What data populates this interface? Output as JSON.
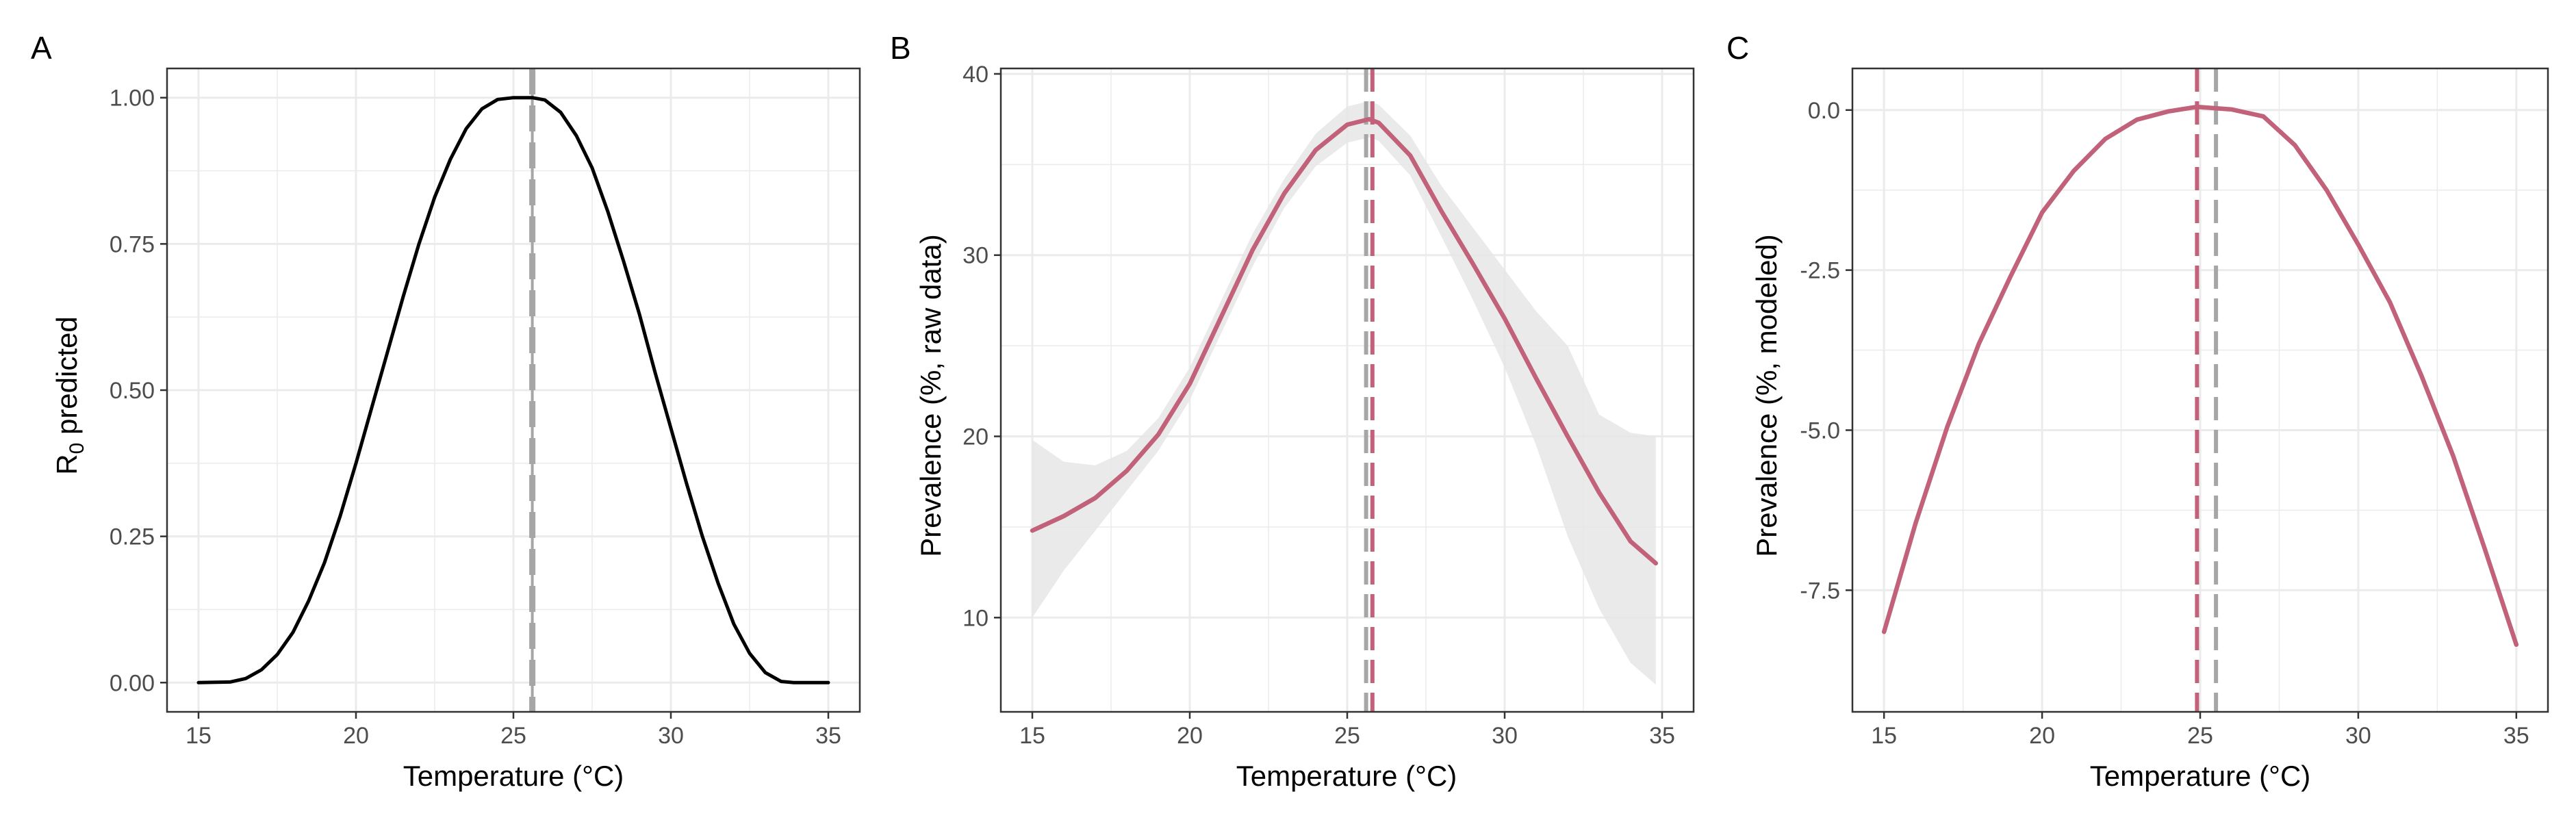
{
  "colors": {
    "model": "#c1627a",
    "black": "#000000",
    "ref_line": "#a6a6a6",
    "ci_band": "#e6e6e6",
    "grid": "#ebebeb",
    "border": "#333333"
  },
  "chart_data": [
    {
      "type": "line",
      "panel": "A",
      "xlabel": "Temperature (°C)",
      "ylabel_main": "R",
      "ylabel_sub": "0",
      "ylabel_rest": " predicted",
      "xlim": [
        14,
        36
      ],
      "ylim": [
        -0.05,
        1.05
      ],
      "x_ticks": [
        15,
        20,
        25,
        30,
        35
      ],
      "x_tick_labels": [
        "15",
        "20",
        "25",
        "30",
        "35"
      ],
      "y_ticks": [
        0,
        0.25,
        0.5,
        0.75,
        1.0
      ],
      "y_tick_labels": [
        "0.00",
        "0.25",
        "0.50",
        "0.75",
        "1.00"
      ],
      "grid": true,
      "series": [
        {
          "x": [
            15,
            16,
            16.5,
            17,
            17.5,
            18,
            18.5,
            19,
            19.5,
            20,
            20.5,
            21,
            21.5,
            22,
            22.5,
            23,
            23.5,
            24,
            24.5,
            25,
            25.3,
            25.6,
            26,
            26.5,
            27,
            27.5,
            28,
            28.5,
            29,
            29.5,
            30,
            30.5,
            31,
            31.5,
            32,
            32.5,
            33,
            33.5,
            33.9,
            35
          ],
          "y": [
            0,
            0.001,
            0.007,
            0.022,
            0.048,
            0.086,
            0.14,
            0.205,
            0.285,
            0.375,
            0.47,
            0.565,
            0.66,
            0.75,
            0.83,
            0.895,
            0.947,
            0.981,
            0.997,
            1.0,
            1.0,
            1.0,
            0.996,
            0.975,
            0.935,
            0.88,
            0.805,
            0.72,
            0.63,
            0.53,
            0.435,
            0.34,
            0.25,
            0.17,
            0.1,
            0.05,
            0.017,
            0.002,
            0,
            0
          ]
        }
      ],
      "vlines": [
        {
          "x": 25.6,
          "color": "#a6a6a6",
          "style": "solid-dashed"
        }
      ]
    },
    {
      "type": "line",
      "panel": "B",
      "xlabel": "Temperature (°C)",
      "ylabel": "Prevalence (%, raw data)",
      "xlim": [
        14,
        36
      ],
      "ylim": [
        4.8,
        40.3
      ],
      "x_ticks": [
        15,
        20,
        25,
        30,
        35
      ],
      "x_tick_labels": [
        "15",
        "20",
        "25",
        "30",
        "35"
      ],
      "y_ticks": [
        10,
        20,
        30,
        40
      ],
      "y_tick_labels": [
        "10",
        "20",
        "30",
        "40"
      ],
      "grid": true,
      "series": [
        {
          "x": [
            15,
            16,
            17,
            18,
            19,
            20,
            21,
            22,
            23,
            24,
            25,
            25.7,
            26,
            27,
            28,
            29,
            30,
            31,
            32,
            33,
            34,
            34.8
          ],
          "y": [
            14.8,
            15.6,
            16.6,
            18.1,
            20.1,
            22.9,
            26.6,
            30.3,
            33.4,
            35.8,
            37.2,
            37.5,
            37.3,
            35.5,
            32.4,
            29.5,
            26.5,
            23.2,
            20.0,
            16.9,
            14.2,
            13.0
          ],
          "ci_lower": [
            10.0,
            12.6,
            14.8,
            17.0,
            19.2,
            22.0,
            25.7,
            29.4,
            32.6,
            34.9,
            36.2,
            36.5,
            36.3,
            34.4,
            31.0,
            27.5,
            23.8,
            19.5,
            14.5,
            10.5,
            7.5,
            6.3
          ],
          "ci_upper": [
            19.8,
            18.6,
            18.4,
            19.2,
            21.0,
            23.8,
            27.5,
            31.2,
            34.2,
            36.7,
            38.2,
            38.5,
            38.3,
            36.6,
            33.8,
            31.5,
            29.2,
            26.9,
            25.0,
            21.2,
            20.2,
            20.0
          ]
        }
      ],
      "vlines": [
        {
          "x": 25.6,
          "color": "#a6a6a6"
        },
        {
          "x": 25.8,
          "color": "#c1627a"
        }
      ]
    },
    {
      "type": "line",
      "panel": "C",
      "xlabel": "Temperature (°C)",
      "ylabel": "Prevalence (%, modeled)",
      "xlim": [
        14,
        36
      ],
      "ylim": [
        -9.4,
        0.65
      ],
      "x_ticks": [
        15,
        20,
        25,
        30,
        35
      ],
      "x_tick_labels": [
        "15",
        "20",
        "25",
        "30",
        "35"
      ],
      "y_ticks": [
        -7.5,
        -5.0,
        -2.5,
        0.0
      ],
      "y_tick_labels": [
        "-7.5",
        "-5.0",
        "-2.5",
        "0.0"
      ],
      "grid": true,
      "series": [
        {
          "x": [
            15,
            16,
            17,
            18,
            19,
            20,
            21,
            22,
            23,
            24,
            24.9,
            26,
            27,
            28,
            29,
            30,
            31,
            32,
            33,
            34,
            35
          ],
          "y": [
            -8.15,
            -6.45,
            -4.95,
            -3.65,
            -2.6,
            -1.6,
            -0.95,
            -0.45,
            -0.15,
            -0.02,
            0.05,
            0.01,
            -0.1,
            -0.55,
            -1.25,
            -2.1,
            -3.0,
            -4.15,
            -5.4,
            -6.85,
            -8.35
          ]
        }
      ],
      "vlines": [
        {
          "x": 24.9,
          "color": "#c1627a"
        },
        {
          "x": 25.5,
          "color": "#a6a6a6"
        }
      ]
    }
  ]
}
